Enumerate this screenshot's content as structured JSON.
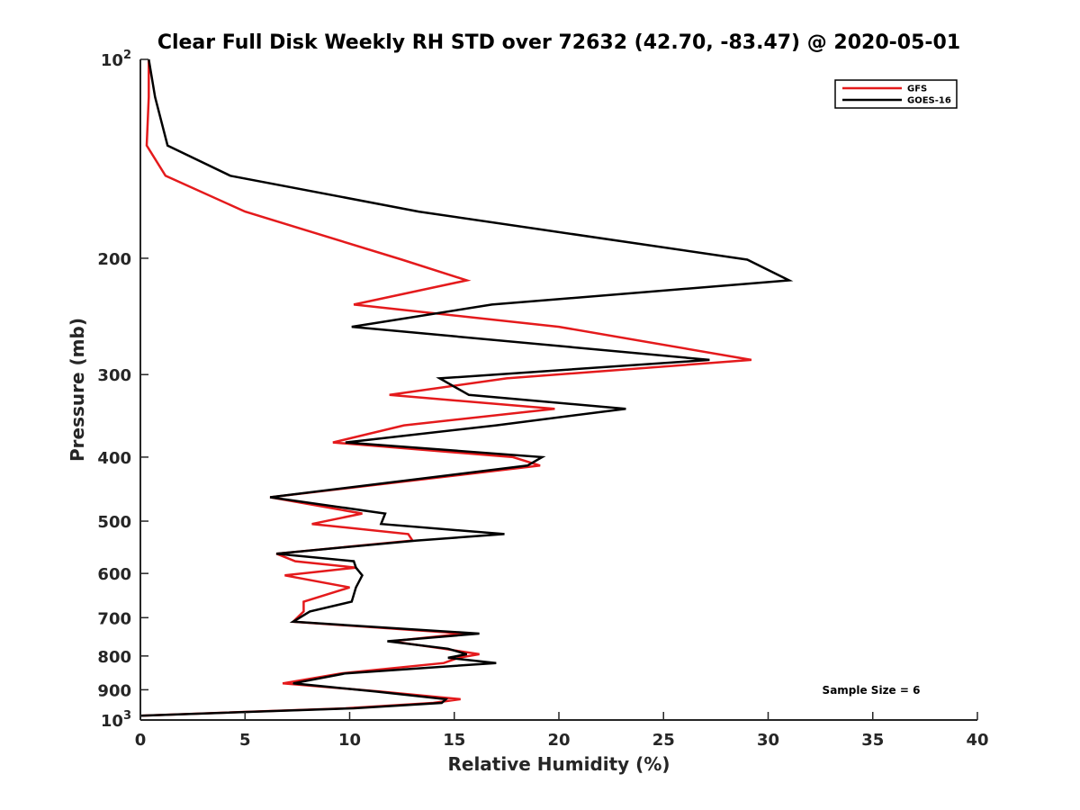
{
  "chart_data": {
    "type": "line",
    "title": "Clear Full Disk Weekly RH STD over 72632 (42.70, -83.47) @ 2020-05-01",
    "xlabel": "Relative Humidity (%)",
    "ylabel": "Pressure (mb)",
    "xlim": [
      0,
      40
    ],
    "ylim": [
      100,
      1000
    ],
    "y_scale": "log",
    "y_reversed": true,
    "x_ticks": [
      0,
      5,
      10,
      15,
      20,
      25,
      30,
      35,
      40
    ],
    "y_ticks": [
      {
        "value": 100,
        "label": "10",
        "sup": "2"
      },
      {
        "value": 200,
        "label": "200",
        "sup": ""
      },
      {
        "value": 300,
        "label": "300",
        "sup": ""
      },
      {
        "value": 400,
        "label": "400",
        "sup": ""
      },
      {
        "value": 500,
        "label": "500",
        "sup": ""
      },
      {
        "value": 600,
        "label": "600",
        "sup": ""
      },
      {
        "value": 700,
        "label": "700",
        "sup": ""
      },
      {
        "value": 800,
        "label": "800",
        "sup": ""
      },
      {
        "value": 900,
        "label": "900",
        "sup": ""
      },
      {
        "value": 1000,
        "label": "10",
        "sup": "3"
      }
    ],
    "grid": false,
    "legend_position": "top-right",
    "series": [
      {
        "name": "GFS",
        "color": "#e41a1c",
        "points": [
          [
            0.4,
            100
          ],
          [
            0.4,
            114
          ],
          [
            0.3,
            135
          ],
          [
            1.2,
            150
          ],
          [
            5.0,
            170
          ],
          [
            12.5,
            201
          ],
          [
            15.6,
            216
          ],
          [
            10.2,
            235
          ],
          [
            20.0,
            254
          ],
          [
            29.2,
            285
          ],
          [
            17.5,
            304
          ],
          [
            11.9,
            322
          ],
          [
            19.8,
            338
          ],
          [
            12.6,
            358
          ],
          [
            9.2,
            380
          ],
          [
            17.8,
            400
          ],
          [
            19.1,
            412
          ],
          [
            6.2,
            460
          ],
          [
            10.6,
            487
          ],
          [
            8.2,
            505
          ],
          [
            12.8,
            523
          ],
          [
            13.0,
            535
          ],
          [
            6.5,
            560
          ],
          [
            7.4,
            575
          ],
          [
            10.3,
            588
          ],
          [
            6.9,
            604
          ],
          [
            10.0,
            630
          ],
          [
            7.8,
            662
          ],
          [
            7.8,
            685
          ],
          [
            7.3,
            710
          ],
          [
            15.5,
            740
          ],
          [
            12.0,
            760
          ],
          [
            14.5,
            780
          ],
          [
            16.2,
            795
          ],
          [
            15.2,
            805
          ],
          [
            14.5,
            820
          ],
          [
            9.6,
            850
          ],
          [
            6.8,
            880
          ],
          [
            11.4,
            905
          ],
          [
            15.3,
            930
          ],
          [
            14.0,
            942
          ],
          [
            9.8,
            960
          ],
          [
            0.0,
            985
          ]
        ]
      },
      {
        "name": "GOES-16",
        "color": "#000000",
        "points": [
          [
            0.4,
            100
          ],
          [
            0.7,
            114
          ],
          [
            1.3,
            135
          ],
          [
            4.3,
            150
          ],
          [
            13.3,
            170
          ],
          [
            29.0,
            201
          ],
          [
            31.0,
            216
          ],
          [
            16.8,
            235
          ],
          [
            10.1,
            254
          ],
          [
            27.2,
            285
          ],
          [
            14.3,
            304
          ],
          [
            15.7,
            322
          ],
          [
            23.2,
            338
          ],
          [
            17.0,
            358
          ],
          [
            9.8,
            380
          ],
          [
            19.2,
            400
          ],
          [
            18.5,
            412
          ],
          [
            6.2,
            460
          ],
          [
            11.7,
            487
          ],
          [
            11.5,
            505
          ],
          [
            17.4,
            523
          ],
          [
            13.2,
            535
          ],
          [
            6.5,
            560
          ],
          [
            10.2,
            575
          ],
          [
            10.3,
            588
          ],
          [
            10.6,
            604
          ],
          [
            10.3,
            630
          ],
          [
            10.1,
            662
          ],
          [
            8.1,
            685
          ],
          [
            7.3,
            710
          ],
          [
            16.2,
            740
          ],
          [
            11.8,
            760
          ],
          [
            14.7,
            780
          ],
          [
            15.6,
            795
          ],
          [
            14.7,
            805
          ],
          [
            17.0,
            820
          ],
          [
            9.8,
            850
          ],
          [
            7.3,
            880
          ],
          [
            11.2,
            905
          ],
          [
            14.6,
            930
          ],
          [
            14.4,
            942
          ],
          [
            10.2,
            960
          ],
          [
            0.0,
            985
          ]
        ]
      }
    ],
    "annotation": "Sample Size = 6"
  }
}
